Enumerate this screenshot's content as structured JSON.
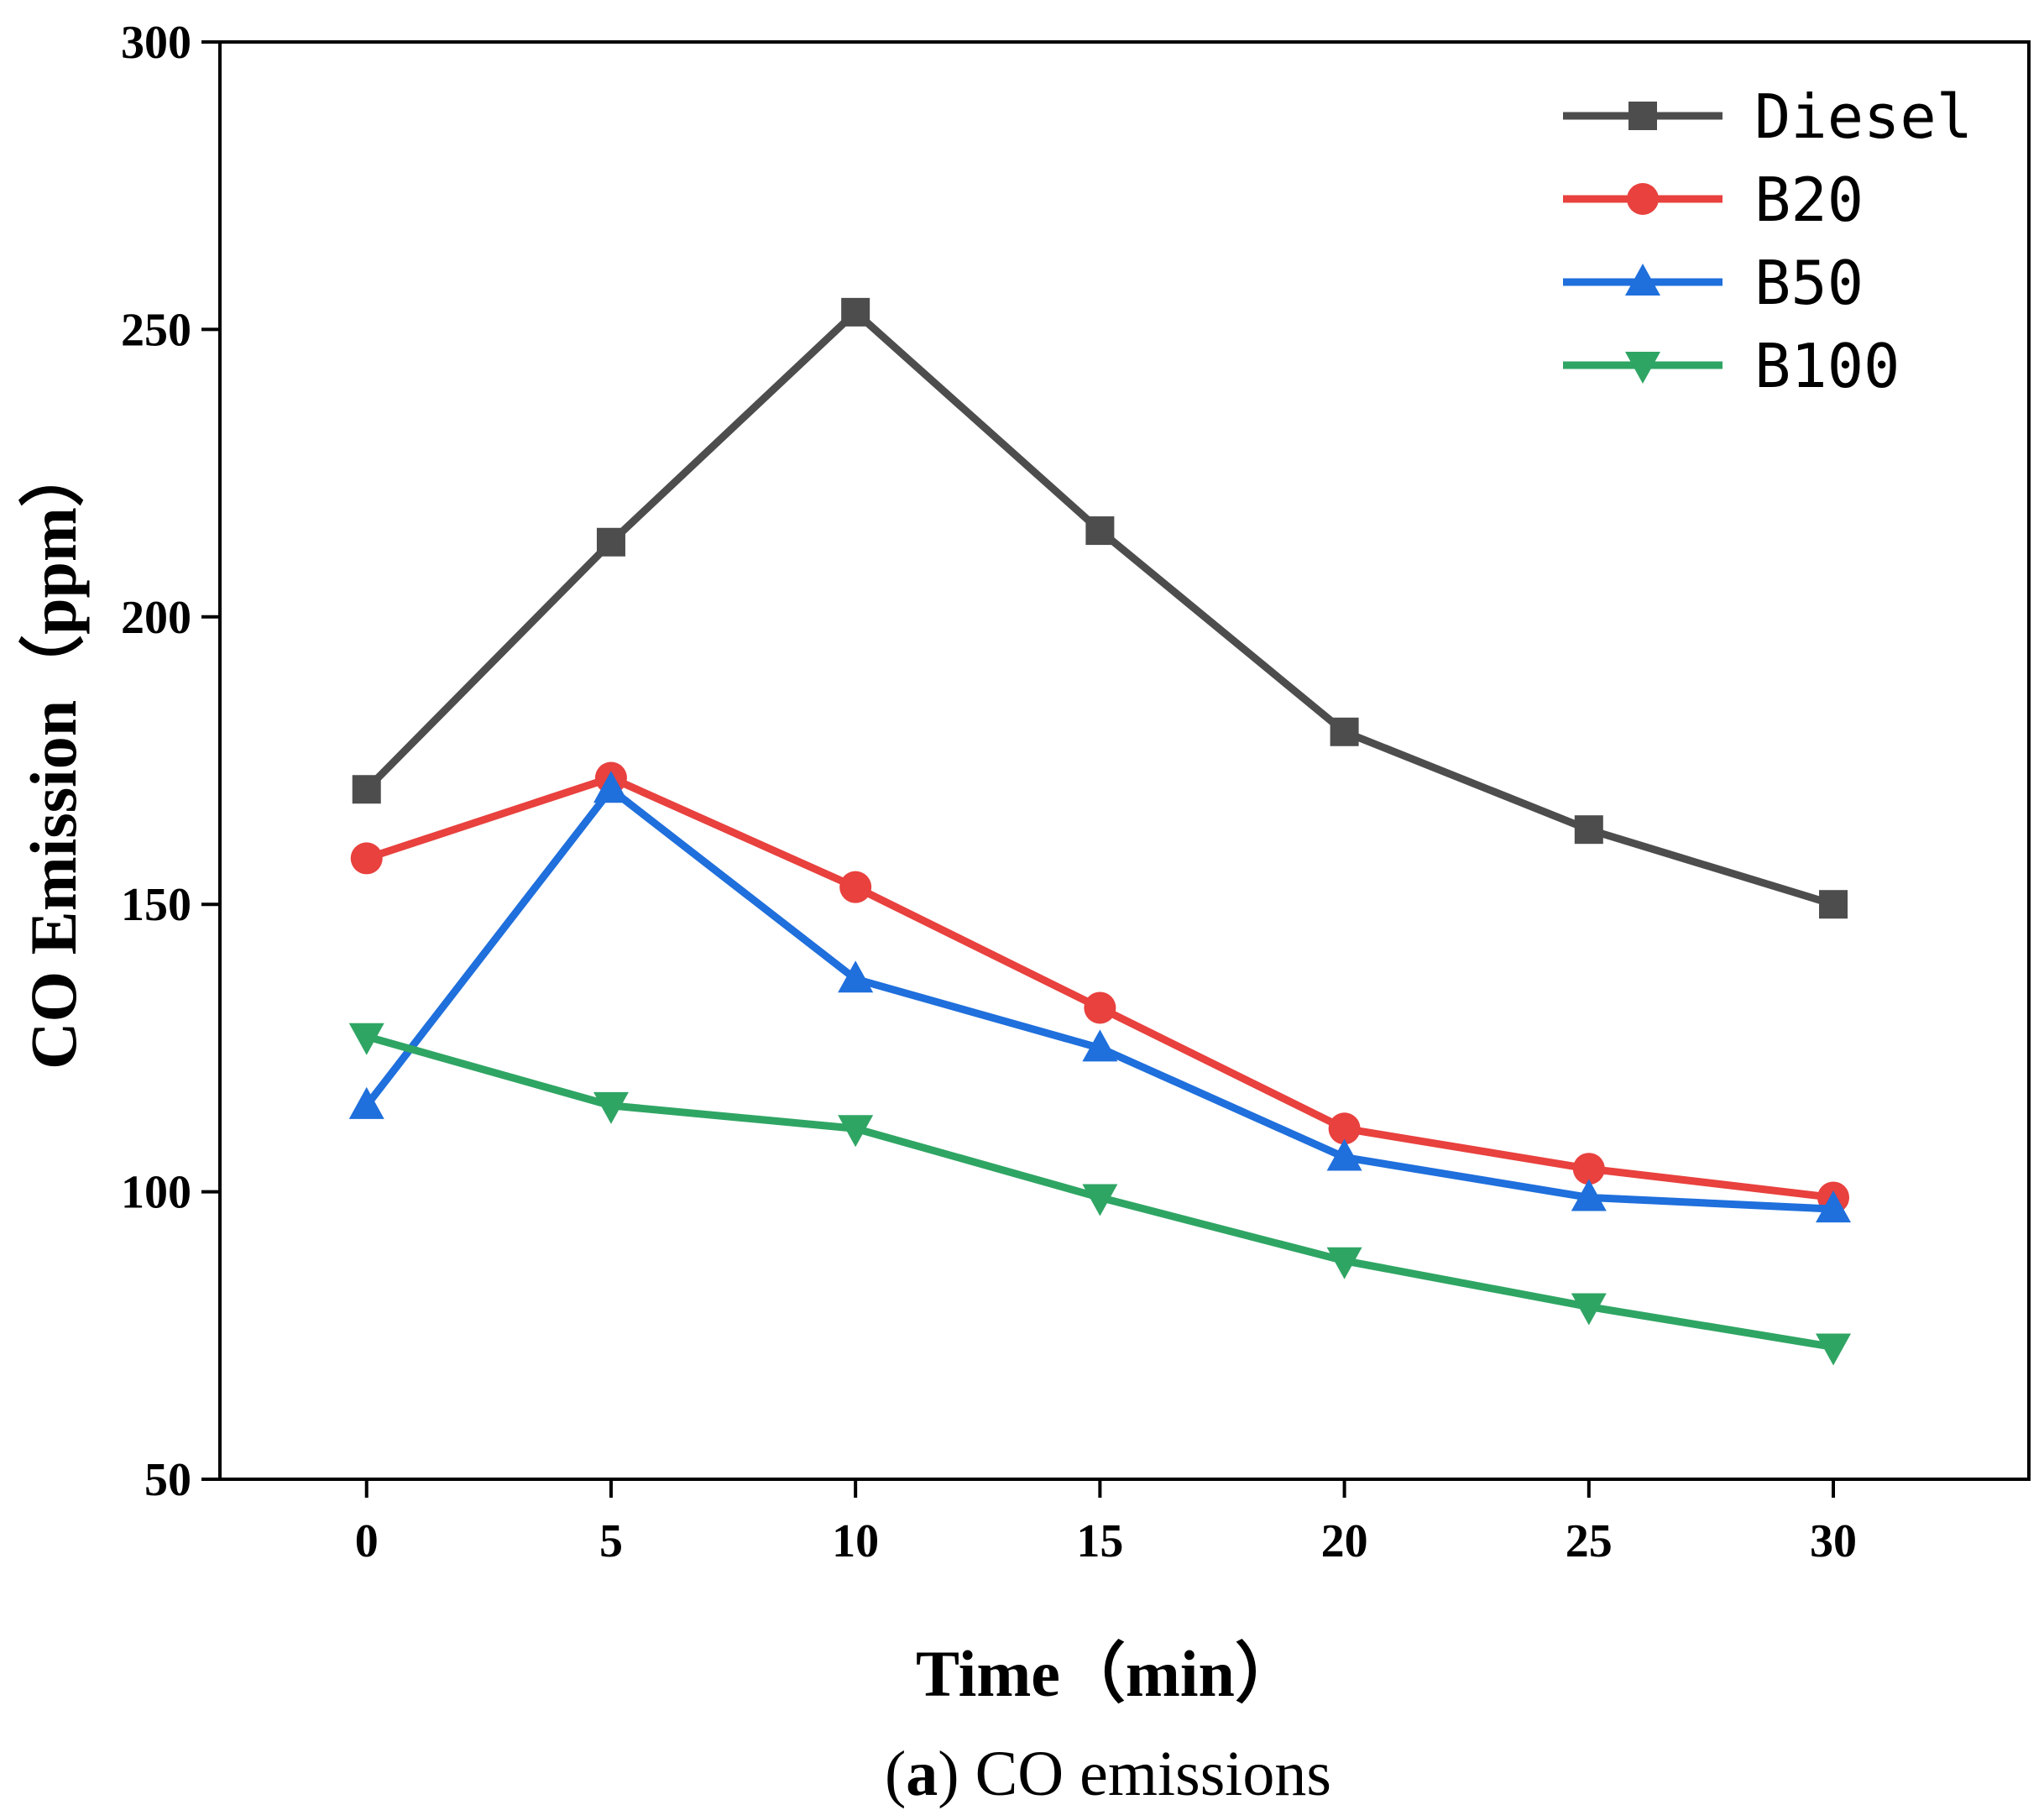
{
  "chart_data": {
    "type": "line",
    "title": "",
    "xlabel": "Time（min）",
    "ylabel": "CO Emission（ppm）",
    "x": [
      0,
      5,
      10,
      15,
      20,
      25,
      30
    ],
    "xticks": [
      "0",
      "5",
      "10",
      "15",
      "20",
      "25",
      "30"
    ],
    "yticks": [
      "50",
      "100",
      "150",
      "200",
      "250",
      "300"
    ],
    "xlim": [
      -3,
      34
    ],
    "ylim": [
      50,
      300
    ],
    "grid": false,
    "legend_position": "top-right",
    "series": [
      {
        "name": "Diesel",
        "marker": "square",
        "color": "#4d4d4d",
        "values": [
          170,
          213,
          253,
          215,
          180,
          163,
          150
        ]
      },
      {
        "name": "B20",
        "marker": "circle",
        "color": "#e8413e",
        "values": [
          158,
          172,
          153,
          132,
          111,
          104,
          99
        ]
      },
      {
        "name": "B50",
        "marker": "triangle-up",
        "color": "#1f6fdc",
        "values": [
          115,
          170,
          137,
          125,
          106,
          99,
          97
        ]
      },
      {
        "name": "B100",
        "marker": "triangle-down",
        "color": "#2fa564",
        "values": [
          127,
          115,
          111,
          99,
          88,
          80,
          73
        ]
      }
    ]
  },
  "caption": {
    "label": "a",
    "open": "(",
    "close": ")",
    "text": " CO emissions"
  }
}
